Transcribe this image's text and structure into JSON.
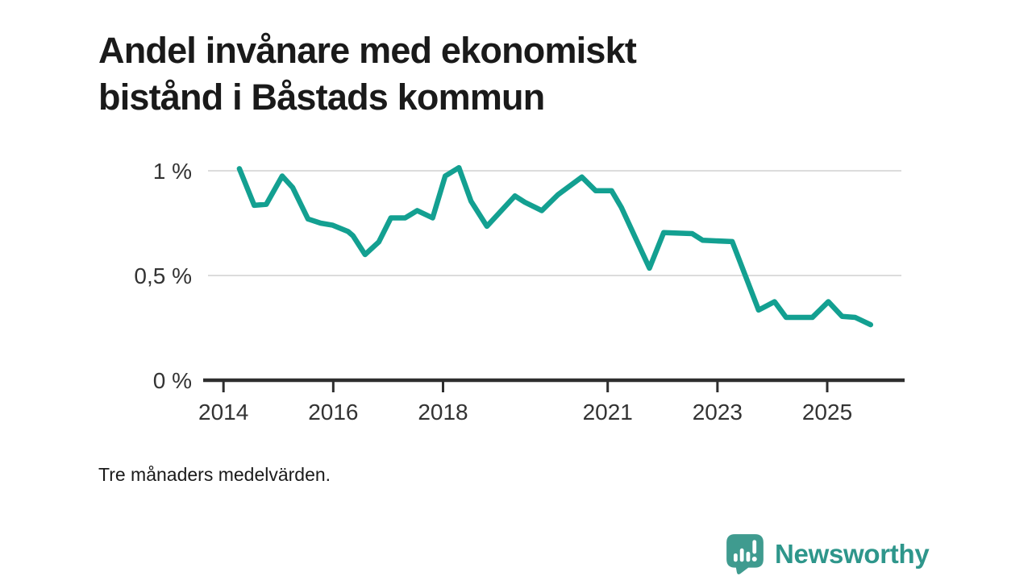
{
  "header": {
    "title": "Andel invånare med ekonomiskt bistånd i Båstads kommun",
    "title_lines": [
      "Andel invånare med ekonomiskt",
      "bistånd i Båstads kommun"
    ]
  },
  "footnote": "Tre månaders medelvärden.",
  "branding": {
    "name": "Newsworthy",
    "logo_icon": "newsworthy-chart-bubble-badge"
  },
  "colors": {
    "line": "#13a091",
    "grid": "#dcdcdc",
    "axis": "#2e2e2e",
    "tick_text": "#333333",
    "title_text": "#1a1a1a",
    "badge_teal": "#3f9b8f",
    "brand_text_teal": "#2e968b",
    "badge_glyph": "#ffffff"
  },
  "chart_data": {
    "type": "line",
    "title": "Andel invånare med ekonomiskt bistånd i Båstads kommun",
    "note": "Tre månaders medelvärden.",
    "xlabel": "",
    "ylabel": "",
    "x_unit": "year (decimal)",
    "y_unit": "percent of residents",
    "xlim": [
      2013.63,
      2026.41
    ],
    "ylim": [
      0,
      1.08
    ],
    "grid": "horizontal-only",
    "legend_position": "none",
    "x_ticks": [
      {
        "v": 2014,
        "label": "2014"
      },
      {
        "v": 2016,
        "label": "2016"
      },
      {
        "v": 2018,
        "label": "2018"
      },
      {
        "v": 2021,
        "label": "2021"
      },
      {
        "v": 2023,
        "label": "2023"
      },
      {
        "v": 2025,
        "label": "2025"
      }
    ],
    "y_ticks": [
      {
        "v": 0,
        "label": "0 %",
        "gridline": false
      },
      {
        "v": 0.5,
        "label": "0,5 %",
        "gridline": true
      },
      {
        "v": 1,
        "label": "1 %",
        "gridline": true
      }
    ],
    "series": [
      {
        "name": "Andel invånare med ekonomiskt bistånd",
        "color": "#13a091",
        "points": [
          [
            2014.29,
            1.01
          ],
          [
            2014.56,
            0.835
          ],
          [
            2014.78,
            0.84
          ],
          [
            2015.07,
            0.975
          ],
          [
            2015.26,
            0.92
          ],
          [
            2015.54,
            0.77
          ],
          [
            2015.77,
            0.75
          ],
          [
            2015.99,
            0.74
          ],
          [
            2016.27,
            0.71
          ],
          [
            2016.36,
            0.69
          ],
          [
            2016.58,
            0.6
          ],
          [
            2016.83,
            0.66
          ],
          [
            2017.05,
            0.775
          ],
          [
            2017.31,
            0.775
          ],
          [
            2017.53,
            0.81
          ],
          [
            2017.81,
            0.775
          ],
          [
            2018.04,
            0.975
          ],
          [
            2018.29,
            1.015
          ],
          [
            2018.51,
            0.855
          ],
          [
            2018.8,
            0.735
          ],
          [
            2019.31,
            0.88
          ],
          [
            2019.49,
            0.85
          ],
          [
            2019.8,
            0.81
          ],
          [
            2020.09,
            0.885
          ],
          [
            2020.53,
            0.97
          ],
          [
            2020.78,
            0.905
          ],
          [
            2021.07,
            0.905
          ],
          [
            2021.25,
            0.825
          ],
          [
            2021.76,
            0.535
          ],
          [
            2022.02,
            0.705
          ],
          [
            2022.54,
            0.7
          ],
          [
            2022.73,
            0.668
          ],
          [
            2023.27,
            0.662
          ],
          [
            2023.75,
            0.335
          ],
          [
            2024.04,
            0.375
          ],
          [
            2024.25,
            0.3
          ],
          [
            2024.73,
            0.3
          ],
          [
            2025.02,
            0.375
          ],
          [
            2025.27,
            0.305
          ],
          [
            2025.51,
            0.3
          ],
          [
            2025.79,
            0.265
          ]
        ]
      }
    ]
  }
}
